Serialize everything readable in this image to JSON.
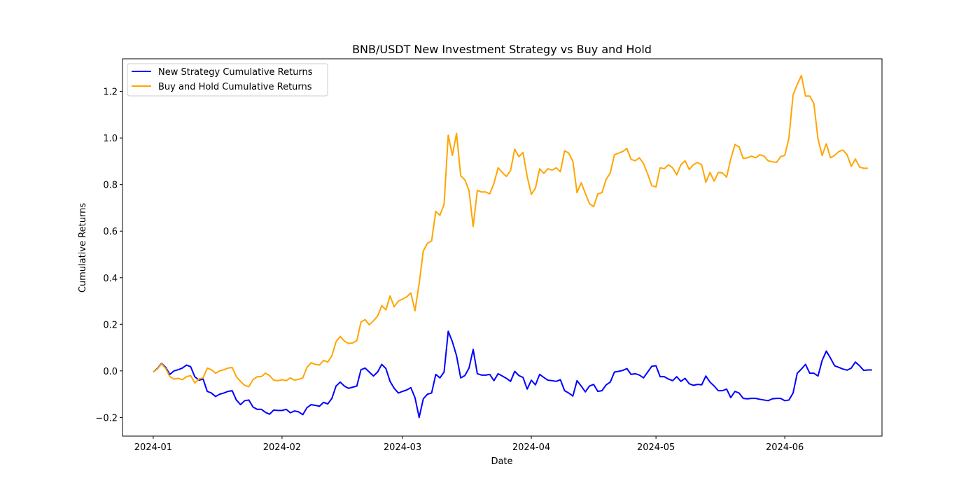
{
  "chart_data": {
    "type": "line",
    "title": "BNB/USDT New Investment Strategy vs Buy and Hold",
    "xlabel": "Date",
    "ylabel": "Cumulative Returns",
    "x_start": "2024-01-01",
    "x_end": "2024-06-20",
    "xlim_days": [
      -7.4,
      175.4
    ],
    "ylim": [
      -0.28,
      1.34
    ],
    "x_ticks": [
      {
        "label": "2024-01",
        "day": 0
      },
      {
        "label": "2024-02",
        "day": 31
      },
      {
        "label": "2024-03",
        "day": 60
      },
      {
        "label": "2024-04",
        "day": 91
      },
      {
        "label": "2024-05",
        "day": 121
      },
      {
        "label": "2024-06",
        "day": 152
      }
    ],
    "y_ticks": [
      -0.2,
      0.0,
      0.2,
      0.4,
      0.6,
      0.8,
      1.0,
      1.2
    ],
    "legend": {
      "position": "upper-left"
    },
    "series": [
      {
        "name": "New Strategy Cumulative Returns",
        "color": "#0000ff",
        "values": [
          -0.005,
          0.01,
          0.032,
          0.015,
          -0.015,
          0.0,
          0.005,
          0.012,
          0.025,
          0.018,
          -0.025,
          -0.04,
          -0.035,
          -0.088,
          -0.095,
          -0.11,
          -0.1,
          -0.095,
          -0.088,
          -0.085,
          -0.125,
          -0.145,
          -0.128,
          -0.125,
          -0.155,
          -0.165,
          -0.165,
          -0.178,
          -0.186,
          -0.168,
          -0.17,
          -0.17,
          -0.165,
          -0.18,
          -0.172,
          -0.176,
          -0.188,
          -0.158,
          -0.145,
          -0.148,
          -0.152,
          -0.135,
          -0.142,
          -0.118,
          -0.065,
          -0.048,
          -0.065,
          -0.075,
          -0.07,
          -0.065,
          0.005,
          0.012,
          -0.005,
          -0.022,
          -0.005,
          0.028,
          0.01,
          -0.045,
          -0.075,
          -0.095,
          -0.088,
          -0.082,
          -0.072,
          -0.115,
          -0.2,
          -0.12,
          -0.1,
          -0.095,
          -0.015,
          -0.03,
          -0.005,
          0.17,
          0.125,
          0.065,
          -0.03,
          -0.02,
          0.012,
          0.092,
          -0.012,
          -0.018,
          -0.018,
          -0.015,
          -0.042,
          -0.012,
          -0.022,
          -0.032,
          -0.045,
          -0.002,
          -0.02,
          -0.028,
          -0.078,
          -0.04,
          -0.06,
          -0.015,
          -0.028,
          -0.04,
          -0.042,
          -0.045,
          -0.038,
          -0.085,
          -0.095,
          -0.108,
          -0.042,
          -0.065,
          -0.09,
          -0.065,
          -0.058,
          -0.088,
          -0.085,
          -0.06,
          -0.048,
          -0.005,
          -0.002,
          0.002,
          0.01,
          -0.015,
          -0.012,
          -0.018,
          -0.03,
          -0.005,
          0.02,
          0.022,
          -0.025,
          -0.025,
          -0.035,
          -0.042,
          -0.025,
          -0.045,
          -0.032,
          -0.055,
          -0.062,
          -0.058,
          -0.06,
          -0.022,
          -0.048,
          -0.065,
          -0.085,
          -0.085,
          -0.078,
          -0.115,
          -0.088,
          -0.095,
          -0.118,
          -0.12,
          -0.118,
          -0.118,
          -0.122,
          -0.125,
          -0.128,
          -0.12,
          -0.118,
          -0.118,
          -0.128,
          -0.125,
          -0.095,
          -0.01,
          0.008,
          0.028,
          -0.01,
          -0.01,
          -0.022,
          0.045,
          0.085,
          0.055,
          0.022,
          0.015,
          0.008,
          0.003,
          0.012,
          0.038,
          0.022,
          0.002,
          0.004,
          0.004
        ]
      },
      {
        "name": "Buy and Hold Cumulative Returns",
        "color": "#ffa500",
        "values": [
          -0.005,
          0.008,
          0.03,
          0.01,
          -0.025,
          -0.035,
          -0.032,
          -0.038,
          -0.025,
          -0.02,
          -0.052,
          -0.035,
          -0.03,
          0.012,
          0.005,
          -0.01,
          0.0,
          0.005,
          0.012,
          0.015,
          -0.025,
          -0.045,
          -0.062,
          -0.068,
          -0.038,
          -0.025,
          -0.025,
          -0.01,
          -0.02,
          -0.04,
          -0.042,
          -0.038,
          -0.042,
          -0.03,
          -0.04,
          -0.036,
          -0.03,
          0.015,
          0.035,
          0.028,
          0.025,
          0.045,
          0.038,
          0.065,
          0.125,
          0.148,
          0.128,
          0.118,
          0.12,
          0.13,
          0.21,
          0.22,
          0.198,
          0.215,
          0.235,
          0.28,
          0.262,
          0.322,
          0.275,
          0.3,
          0.308,
          0.318,
          0.335,
          0.258,
          0.375,
          0.515,
          0.548,
          0.558,
          0.685,
          0.668,
          0.715,
          1.012,
          0.925,
          1.02,
          0.838,
          0.82,
          0.775,
          0.62,
          0.775,
          0.768,
          0.768,
          0.76,
          0.805,
          0.872,
          0.852,
          0.835,
          0.86,
          0.952,
          0.92,
          0.938,
          0.835,
          0.758,
          0.785,
          0.868,
          0.848,
          0.868,
          0.862,
          0.872,
          0.855,
          0.945,
          0.935,
          0.9,
          0.765,
          0.808,
          0.762,
          0.718,
          0.705,
          0.76,
          0.765,
          0.822,
          0.85,
          0.928,
          0.935,
          0.942,
          0.955,
          0.908,
          0.902,
          0.915,
          0.89,
          0.845,
          0.795,
          0.79,
          0.872,
          0.868,
          0.885,
          0.872,
          0.842,
          0.885,
          0.902,
          0.865,
          0.885,
          0.895,
          0.885,
          0.81,
          0.852,
          0.815,
          0.852,
          0.85,
          0.832,
          0.91,
          0.972,
          0.962,
          0.912,
          0.915,
          0.922,
          0.915,
          0.928,
          0.922,
          0.902,
          0.898,
          0.895,
          0.92,
          0.925,
          1.0,
          1.185,
          1.23,
          1.268,
          1.18,
          1.18,
          1.148,
          0.995,
          0.925,
          0.975,
          0.915,
          0.925,
          0.942,
          0.948,
          0.928,
          0.878,
          0.91,
          0.875,
          0.87,
          0.87
        ]
      }
    ]
  }
}
